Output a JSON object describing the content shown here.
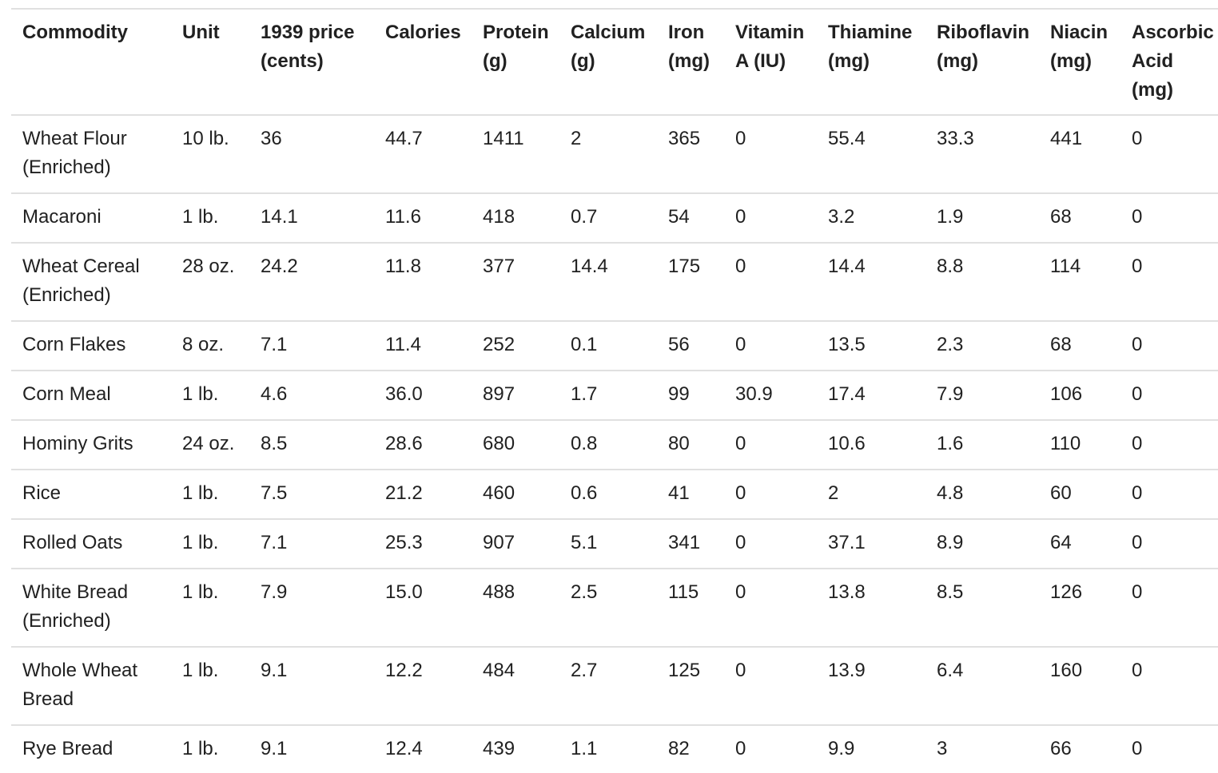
{
  "table": {
    "columns": [
      [
        "Commodity"
      ],
      [
        "Unit"
      ],
      [
        "1939 price",
        "(cents)"
      ],
      [
        "Calories"
      ],
      [
        "Protein",
        "(g)"
      ],
      [
        "Calcium",
        "(g)"
      ],
      [
        "Iron",
        "(mg)"
      ],
      [
        "Vitamin",
        "A (IU)"
      ],
      [
        "Thiamine",
        "(mg)"
      ],
      [
        "Riboflavin",
        "(mg)"
      ],
      [
        "Niacin",
        "(mg)"
      ],
      [
        "Ascorbic",
        "Acid",
        "(mg)"
      ]
    ],
    "rows": [
      {
        "cells": [
          "Wheat Flour (Enriched)",
          "10 lb.",
          "36",
          "44.7",
          "1411",
          "2",
          "365",
          "0",
          "55.4",
          "33.3",
          "441",
          "0"
        ]
      },
      {
        "cells": [
          "Macaroni",
          "1 lb.",
          "14.1",
          "11.6",
          "418",
          "0.7",
          "54",
          "0",
          "3.2",
          "1.9",
          "68",
          "0"
        ]
      },
      {
        "cells": [
          "Wheat Cereal (Enriched)",
          "28 oz.",
          "24.2",
          "11.8",
          "377",
          "14.4",
          "175",
          "0",
          "14.4",
          "8.8",
          "114",
          "0"
        ]
      },
      {
        "cells": [
          "Corn Flakes",
          "8 oz.",
          "7.1",
          "11.4",
          "252",
          "0.1",
          "56",
          "0",
          "13.5",
          "2.3",
          "68",
          "0"
        ]
      },
      {
        "cells": [
          "Corn Meal",
          "1 lb.",
          "4.6",
          "36.0",
          "897",
          "1.7",
          "99",
          "30.9",
          "17.4",
          "7.9",
          "106",
          "0"
        ]
      },
      {
        "cells": [
          "Hominy Grits",
          "24 oz.",
          "8.5",
          "28.6",
          "680",
          "0.8",
          "80",
          "0",
          "10.6",
          "1.6",
          "110",
          "0"
        ]
      },
      {
        "cells": [
          "Rice",
          "1 lb.",
          "7.5",
          "21.2",
          "460",
          "0.6",
          "41",
          "0",
          "2",
          "4.8",
          "60",
          "0"
        ]
      },
      {
        "cells": [
          "Rolled Oats",
          "1 lb.",
          "7.1",
          "25.3",
          "907",
          "5.1",
          "341",
          "0",
          "37.1",
          "8.9",
          "64",
          "0"
        ]
      },
      {
        "cells": [
          "White Bread (Enriched)",
          "1 lb.",
          "7.9",
          "15.0",
          "488",
          "2.5",
          "115",
          "0",
          "13.8",
          "8.5",
          "126",
          "0"
        ]
      },
      {
        "cells": [
          "Whole Wheat Bread",
          "1 lb.",
          "9.1",
          "12.2",
          "484",
          "2.7",
          "125",
          "0",
          "13.9",
          "6.4",
          "160",
          "0"
        ]
      },
      {
        "cells": [
          "Rye Bread",
          "1 lb.",
          "9.1",
          "12.4",
          "439",
          "1.1",
          "82",
          "0",
          "9.9",
          "3",
          "66",
          "0"
        ]
      }
    ]
  }
}
